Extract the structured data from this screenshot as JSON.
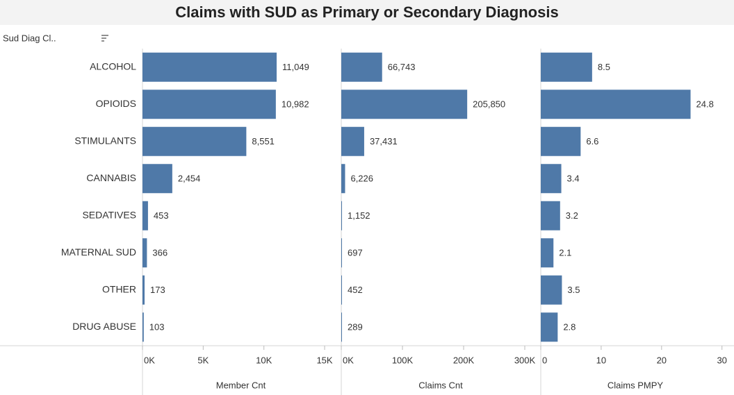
{
  "title": "Claims with SUD as Primary or Secondary Diagnosis",
  "row_header": "Sud Diag Cl..",
  "categories": [
    "ALCOHOL",
    "OPIOIDS",
    "STIMULANTS",
    "CANNABIS",
    "SEDATIVES",
    "MATERNAL SUD",
    "OTHER",
    "DRUG ABUSE"
  ],
  "chart_data": [
    {
      "type": "hbar",
      "x_label": "Member Cnt",
      "color": "#4f79a8",
      "values": [
        11049,
        10982,
        8551,
        2454,
        453,
        366,
        173,
        103
      ],
      "value_labels": [
        "11,049",
        "10,982",
        "8,551",
        "2,454",
        "453",
        "366",
        "173",
        "103"
      ],
      "xlim": [
        0,
        16200
      ],
      "xticks": [
        {
          "value": 0,
          "label": "0K"
        },
        {
          "value": 5000,
          "label": "5K"
        },
        {
          "value": 10000,
          "label": "10K"
        },
        {
          "value": 15000,
          "label": "15K"
        }
      ]
    },
    {
      "type": "hbar",
      "x_label": "Claims Cnt",
      "color": "#4f79a8",
      "values": [
        66743,
        205850,
        37431,
        6226,
        1152,
        697,
        452,
        289
      ],
      "value_labels": [
        "66,743",
        "205,850",
        "37,431",
        "6,226",
        "1,152",
        "697",
        "452",
        "289"
      ],
      "xlim": [
        0,
        325000
      ],
      "xticks": [
        {
          "value": 0,
          "label": "0K"
        },
        {
          "value": 100000,
          "label": "100K"
        },
        {
          "value": 200000,
          "label": "200K"
        },
        {
          "value": 300000,
          "label": "300K"
        }
      ]
    },
    {
      "type": "hbar",
      "x_label": "Claims PMPY",
      "color": "#4f79a8",
      "values": [
        8.5,
        24.8,
        6.6,
        3.4,
        3.2,
        2.1,
        3.5,
        2.8
      ],
      "xlim": [
        0,
        31.3
      ],
      "xticks": [
        0,
        10,
        20,
        30
      ]
    }
  ]
}
